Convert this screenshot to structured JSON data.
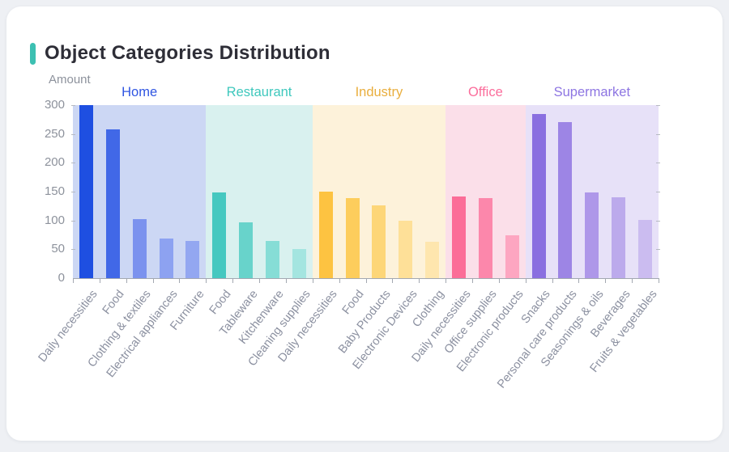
{
  "page": {
    "background_color": "#eef0f4",
    "card_background": "#ffffff"
  },
  "header": {
    "title": "Object Categories Distribution",
    "accent_color": "#3cc0b2"
  },
  "chart_data": {
    "type": "bar",
    "title": "Object Categories Distribution",
    "xlabel": "",
    "ylabel": "Amount",
    "ylim": [
      0,
      300
    ],
    "yticks": [
      0,
      50,
      100,
      150,
      200,
      250,
      300
    ],
    "grid": false,
    "legend_position": "none",
    "axis_color": "#a3a8b1",
    "tick_label_color": "#8d929c",
    "groups": [
      {
        "name": "Home",
        "label_color": "#2f55e2",
        "band_color": "#ccd7f4",
        "bars": [
          {
            "label": "Daily necessities",
            "value": 300,
            "color": "#1e4fe1"
          },
          {
            "label": "Food",
            "value": 258,
            "color": "#4168e7"
          },
          {
            "label": "Clothing & textiles",
            "value": 102,
            "color": "#7b92ee"
          },
          {
            "label": "Electrical appliances",
            "value": 69,
            "color": "#8da2f1"
          },
          {
            "label": "Furniture",
            "value": 64,
            "color": "#93a7f1"
          }
        ]
      },
      {
        "name": "Restaurant",
        "label_color": "#3fc8bd",
        "band_color": "#d9f1ef",
        "bars": [
          {
            "label": "Food",
            "value": 148,
            "color": "#45c8c0"
          },
          {
            "label": "Tableware",
            "value": 97,
            "color": "#68d3cb"
          },
          {
            "label": "Kitchenware",
            "value": 65,
            "color": "#86ddd6"
          },
          {
            "label": "Cleaning supplies",
            "value": 51,
            "color": "#a4e5e0"
          }
        ]
      },
      {
        "name": "Industry",
        "label_color": "#e9ae3d",
        "band_color": "#fdf2da",
        "bars": [
          {
            "label": "Daily necessities",
            "value": 150,
            "color": "#fdc341"
          },
          {
            "label": "Food",
            "value": 139,
            "color": "#fdcd5c"
          },
          {
            "label": "Baby Products",
            "value": 126,
            "color": "#fdd678"
          },
          {
            "label": "Electronic Devices",
            "value": 100,
            "color": "#fee098"
          },
          {
            "label": "Clothing",
            "value": 63,
            "color": "#fee6ae"
          }
        ]
      },
      {
        "name": "Office",
        "label_color": "#fb6d9b",
        "band_color": "#fbdfe9",
        "bars": [
          {
            "label": "Daily necessities",
            "value": 142,
            "color": "#fb6d98"
          },
          {
            "label": "Office supplies",
            "value": 139,
            "color": "#fc87ab"
          },
          {
            "label": "Electronic products",
            "value": 75,
            "color": "#fda6c1"
          }
        ]
      },
      {
        "name": "Supermarket",
        "label_color": "#8d75e2",
        "band_color": "#e7e1f8",
        "bars": [
          {
            "label": "Snacks",
            "value": 284,
            "color": "#8a6fe0"
          },
          {
            "label": "Personal care products",
            "value": 270,
            "color": "#9d85e5"
          },
          {
            "label": "Seasonings & oils",
            "value": 148,
            "color": "#ae97e9"
          },
          {
            "label": "Beverages",
            "value": 140,
            "color": "#bcaaec"
          },
          {
            "label": "Fruits & vegetables",
            "value": 101,
            "color": "#cbbcf0"
          }
        ]
      }
    ]
  }
}
